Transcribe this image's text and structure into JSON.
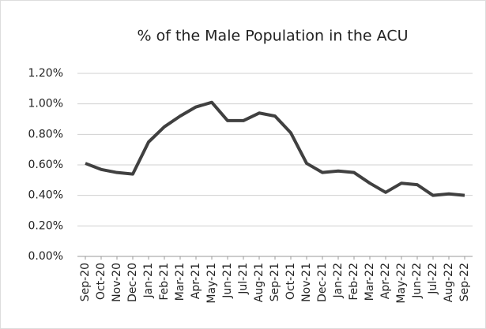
{
  "chart_data": {
    "type": "line",
    "title": "% of the Male Population in the ACU",
    "categories": [
      "Sep-20",
      "Oct-20",
      "Nov-20",
      "Dec-20",
      "Jan-21",
      "Feb-21",
      "Mar-21",
      "Apr-21",
      "May-21",
      "Jun-21",
      "Jul-21",
      "Aug-21",
      "Sep-21",
      "Oct-21",
      "Nov-21",
      "Dec-21",
      "Jan-22",
      "Feb-22",
      "Mar-22",
      "Apr-22",
      "May-22",
      "Jun-22",
      "Jul-22",
      "Aug-22",
      "Sep-22"
    ],
    "values": [
      0.61,
      0.57,
      0.55,
      0.54,
      0.75,
      0.85,
      0.92,
      0.98,
      1.01,
      0.89,
      0.89,
      0.94,
      0.92,
      0.81,
      0.61,
      0.55,
      0.56,
      0.55,
      0.48,
      0.42,
      0.48,
      0.47,
      0.4,
      0.41,
      0.4
    ],
    "color": "#404040",
    "ylim": [
      0,
      1.2
    ],
    "yticks": [
      {
        "value": 0,
        "label": "0.00%"
      },
      {
        "value": 0.2,
        "label": "0.20%"
      },
      {
        "value": 0.4,
        "label": "0.40%"
      },
      {
        "value": 0.6,
        "label": "0.60%"
      },
      {
        "value": 0.8,
        "label": "0.80%"
      },
      {
        "value": 1.0,
        "label": "1.00%"
      },
      {
        "value": 1.2,
        "label": "1.20%"
      }
    ],
    "grid": true
  }
}
